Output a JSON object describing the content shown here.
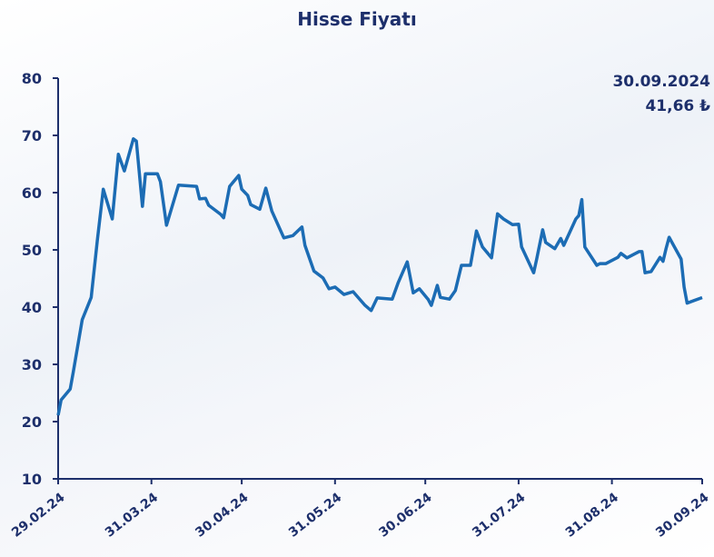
{
  "chart_data": {
    "type": "line",
    "title": "Hisse Fiyatı",
    "annotations": [
      "30.09.2024",
      "41,66 ₺"
    ],
    "color": "#1c6cb4",
    "x": [
      "2024-02-29",
      "2024-03-01",
      "2024-03-04",
      "2024-03-05",
      "2024-03-08",
      "2024-03-11",
      "2024-03-13",
      "2024-03-15",
      "2024-03-18",
      "2024-03-20",
      "2024-03-22",
      "2024-03-25",
      "2024-03-26",
      "2024-03-28",
      "2024-03-29",
      "2024-04-02",
      "2024-04-03",
      "2024-04-05",
      "2024-04-09",
      "2024-04-15",
      "2024-04-16",
      "2024-04-18",
      "2024-04-19",
      "2024-04-23",
      "2024-04-24",
      "2024-04-26",
      "2024-04-29",
      "2024-04-30",
      "2024-05-02",
      "2024-05-03",
      "2024-05-06",
      "2024-05-08",
      "2024-05-10",
      "2024-05-14",
      "2024-05-17",
      "2024-05-20",
      "2024-05-21",
      "2024-05-24",
      "2024-05-27",
      "2024-05-29",
      "2024-05-31",
      "2024-06-03",
      "2024-06-06",
      "2024-06-10",
      "2024-06-12",
      "2024-06-14",
      "2024-06-19",
      "2024-06-21",
      "2024-06-24",
      "2024-06-26",
      "2024-06-28",
      "2024-07-01",
      "2024-07-02",
      "2024-07-04",
      "2024-07-05",
      "2024-07-08",
      "2024-07-10",
      "2024-07-12",
      "2024-07-15",
      "2024-07-17",
      "2024-07-19",
      "2024-07-22",
      "2024-07-24",
      "2024-07-26",
      "2024-07-29",
      "2024-07-31",
      "2024-08-01",
      "2024-08-05",
      "2024-08-06",
      "2024-08-08",
      "2024-08-09",
      "2024-08-12",
      "2024-08-14",
      "2024-08-15",
      "2024-08-19",
      "2024-08-20",
      "2024-08-21",
      "2024-08-22",
      "2024-08-26",
      "2024-08-27",
      "2024-08-29",
      "2024-09-02",
      "2024-09-03",
      "2024-09-04",
      "2024-09-05",
      "2024-09-09",
      "2024-09-10",
      "2024-09-11",
      "2024-09-13",
      "2024-09-16",
      "2024-09-17",
      "2024-09-18",
      "2024-09-19",
      "2024-09-23",
      "2024-09-24",
      "2024-09-25",
      "2024-09-30"
    ],
    "values": [
      21.1,
      23.8,
      25.7,
      28.6,
      37.8,
      41.7,
      51.6,
      60.6,
      55.4,
      66.7,
      63.8,
      69.4,
      69.0,
      57.6,
      63.3,
      63.3,
      61.9,
      54.3,
      61.3,
      61.1,
      58.9,
      59.0,
      57.8,
      56.2,
      55.6,
      61.1,
      63.0,
      60.6,
      59.5,
      57.9,
      57.1,
      60.8,
      56.8,
      52.1,
      52.5,
      54.0,
      50.8,
      46.3,
      45.1,
      43.2,
      43.5,
      42.2,
      42.7,
      40.3,
      39.4,
      41.6,
      41.4,
      44.3,
      47.9,
      42.5,
      43.2,
      41.3,
      40.3,
      43.8,
      41.7,
      41.4,
      42.9,
      47.3,
      47.3,
      53.3,
      50.5,
      48.6,
      56.3,
      55.4,
      54.4,
      54.5,
      50.5,
      46.0,
      48.4,
      53.5,
      51.3,
      50.2,
      52.0,
      50.8,
      55.4,
      56.0,
      58.8,
      50.5,
      47.3,
      47.6,
      47.6,
      48.7,
      49.4,
      49.0,
      48.6,
      49.7,
      49.7,
      46.0,
      46.2,
      48.7,
      48.0,
      50.2,
      52.2,
      48.4,
      43.5,
      40.7,
      41.66
    ],
    "xlim": [
      "2024-02-29",
      "2024-09-30"
    ],
    "xticks": [
      {
        "value": "2024-02-29",
        "label": "29.02.24"
      },
      {
        "value": "2024-03-31",
        "label": "31.03.24"
      },
      {
        "value": "2024-04-30",
        "label": "30.04.24"
      },
      {
        "value": "2024-05-31",
        "label": "31.05.24"
      },
      {
        "value": "2024-06-30",
        "label": "30.06.24"
      },
      {
        "value": "2024-07-31",
        "label": "31.07.24"
      },
      {
        "value": "2024-08-31",
        "label": "31.08.24"
      },
      {
        "value": "2024-09-30",
        "label": "30.09.24"
      }
    ],
    "ylim": [
      10,
      80
    ],
    "yticks": [
      10,
      20,
      30,
      40,
      50,
      60,
      70,
      80
    ]
  }
}
